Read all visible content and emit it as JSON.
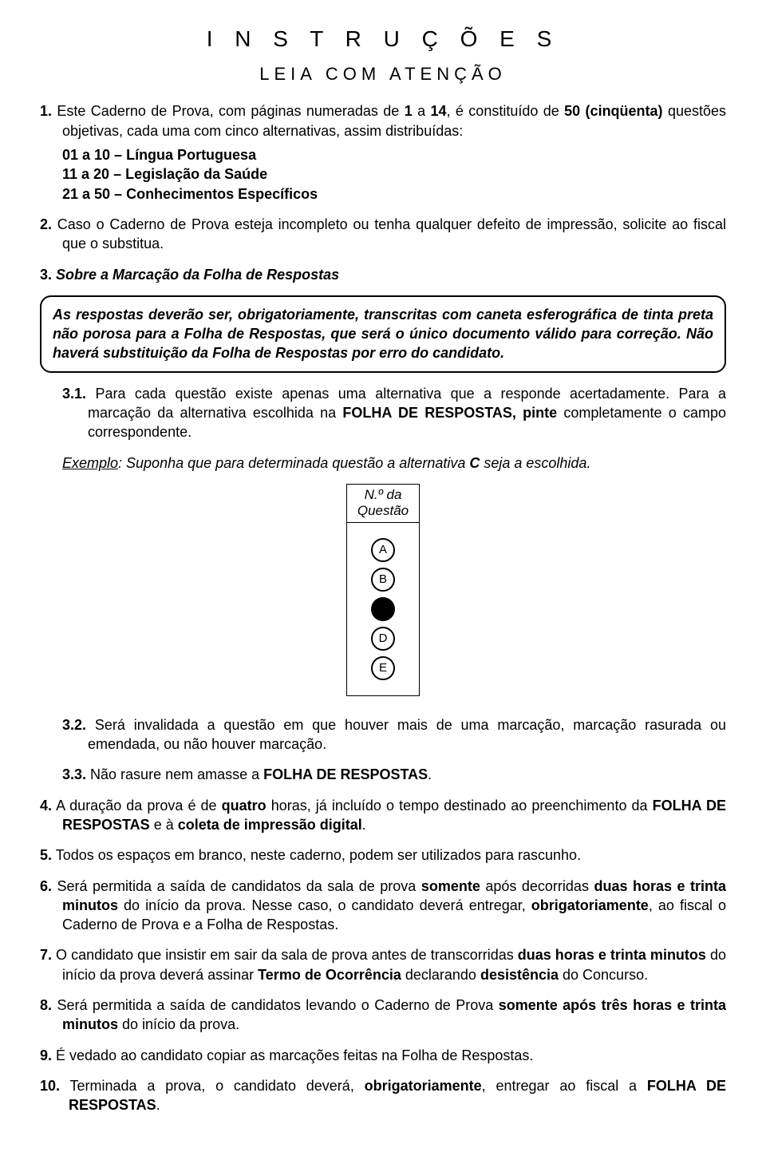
{
  "header": {
    "title": "I N S T R U Ç Õ E S",
    "subtitle": "LEIA  COM  ATENÇÃO"
  },
  "item1": {
    "lead": "1.",
    "t1": " Este Caderno de Prova, com páginas numeradas de ",
    "b1": "1",
    "t2": " a ",
    "b2": "14",
    "t3": ", é constituído de ",
    "b3": "50 (cinqüenta)",
    "t4": " questões objetivas, cada uma com cinco alternativas, assim distribuídas:",
    "lines": [
      "01 a 10 – Língua Portuguesa",
      "11 a 20 – Legislação da Saúde",
      "21 a 50 – Conhecimentos Específicos"
    ]
  },
  "item2": {
    "lead": "2.",
    "text": " Caso o Caderno de Prova esteja incompleto ou tenha qualquer defeito de impressão, solicite ao fiscal que o substitua."
  },
  "item3": {
    "lead": "3.",
    "title": " Sobre a Marcação da Folha de Respostas",
    "box": "As respostas deverão ser, obrigatoriamente, transcritas com caneta esferográfica de tinta preta não porosa para a Folha de Respostas, que será o único documento válido para correção. Não haverá substituição da Folha de Respostas por erro do candidato.",
    "s31": {
      "lead": "3.1.",
      "t1": " Para cada questão existe apenas uma alternativa que a responde acertadamente. Para a marcação da alternativa escolhida na ",
      "b1": "FOLHA DE RESPOSTAS, pinte",
      "t2": " completamente o campo correspondente."
    },
    "example_intro": {
      "u": "Exemplo",
      "t1": ": Suponha que para determinada questão a alternativa ",
      "b": "C",
      "t2": " seja a escolhida."
    },
    "qbox": {
      "head1": "N.º da",
      "head2": "Questão",
      "opts": [
        "A",
        "B",
        "C",
        "D",
        "E"
      ],
      "filled_index": 2
    },
    "s32": {
      "lead": "3.2.",
      "text": " Será invalidada a questão em que houver mais de uma marcação, marcação rasurada ou emendada, ou não houver marcação."
    },
    "s33": {
      "lead": "3.3.",
      "t1": " Não rasure nem amasse a ",
      "b1": "FOLHA DE RESPOSTAS",
      "t2": "."
    }
  },
  "item4": {
    "lead": "4.",
    "t1": " A duração da prova é de ",
    "b1": "quatro",
    "t2": " horas, já incluído o tempo destinado ao preenchimento da ",
    "b2": "FOLHA DE RESPOSTAS",
    "t3": " e à ",
    "b3": "coleta de impressão digital",
    "t4": "."
  },
  "item5": {
    "lead": "5.",
    "text": " Todos os espaços em branco, neste caderno, podem ser utilizados para rascunho."
  },
  "item6": {
    "lead": "6.",
    "t1": " Será permitida a saída de candidatos da sala de prova ",
    "b1": "somente",
    "t2": " após decorridas ",
    "b2": "duas horas e trinta minutos",
    "t3": " do início da prova. Nesse caso, o candidato deverá entregar, ",
    "b3": "obrigatoriamente",
    "t4": ", ao fiscal o Caderno de Prova e a Folha de Respostas."
  },
  "item7": {
    "lead": "7.",
    "t1": " O candidato que insistir em sair da sala de prova antes de transcorridas ",
    "b1": "duas horas e trinta minutos",
    "t2": " do início da prova deverá assinar ",
    "b2": "Termo de Ocorrência",
    "t3": " declarando ",
    "b3": "desistência",
    "t4": " do Concurso."
  },
  "item8": {
    "lead": "8.",
    "t1": " Será permitida a saída de candidatos levando o Caderno de Prova ",
    "b1": "somente após três horas e trinta minutos",
    "t2": " do início da prova."
  },
  "item9": {
    "lead": "9.",
    "text": " É vedado ao candidato copiar as marcações feitas na Folha de Respostas."
  },
  "item10": {
    "lead": "10.",
    "t1": " Terminada a prova, o candidato deverá, ",
    "b1": "obrigatoriamente",
    "t2": ", entregar ao fiscal a ",
    "b2": "FOLHA DE RESPOSTAS",
    "t3": "."
  }
}
